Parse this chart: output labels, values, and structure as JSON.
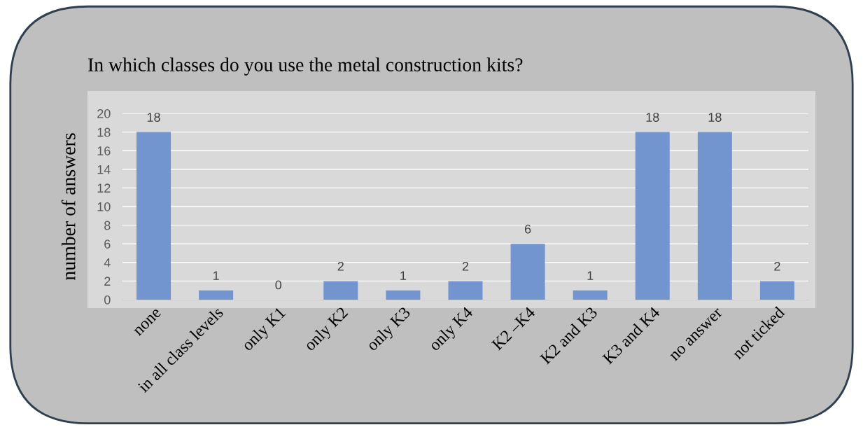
{
  "chart_data": {
    "type": "bar",
    "title": "In which classes do you use the metal construction kits?",
    "ylabel": "number of answers",
    "categories": [
      "none",
      "in all class levels",
      "only K1",
      "only K2",
      "only K3",
      "only K4",
      "K2 –K4",
      "K2 and K3",
      "K3 and K4",
      "no answer",
      "not ticked"
    ],
    "values": [
      18,
      1,
      0,
      2,
      1,
      2,
      6,
      1,
      18,
      18,
      2
    ],
    "color": "#7295d0",
    "ylim": [
      0,
      20
    ],
    "yticks": [
      0,
      2,
      4,
      6,
      8,
      10,
      12,
      14,
      16,
      18,
      20
    ],
    "grid": "y",
    "data_labels": true
  }
}
